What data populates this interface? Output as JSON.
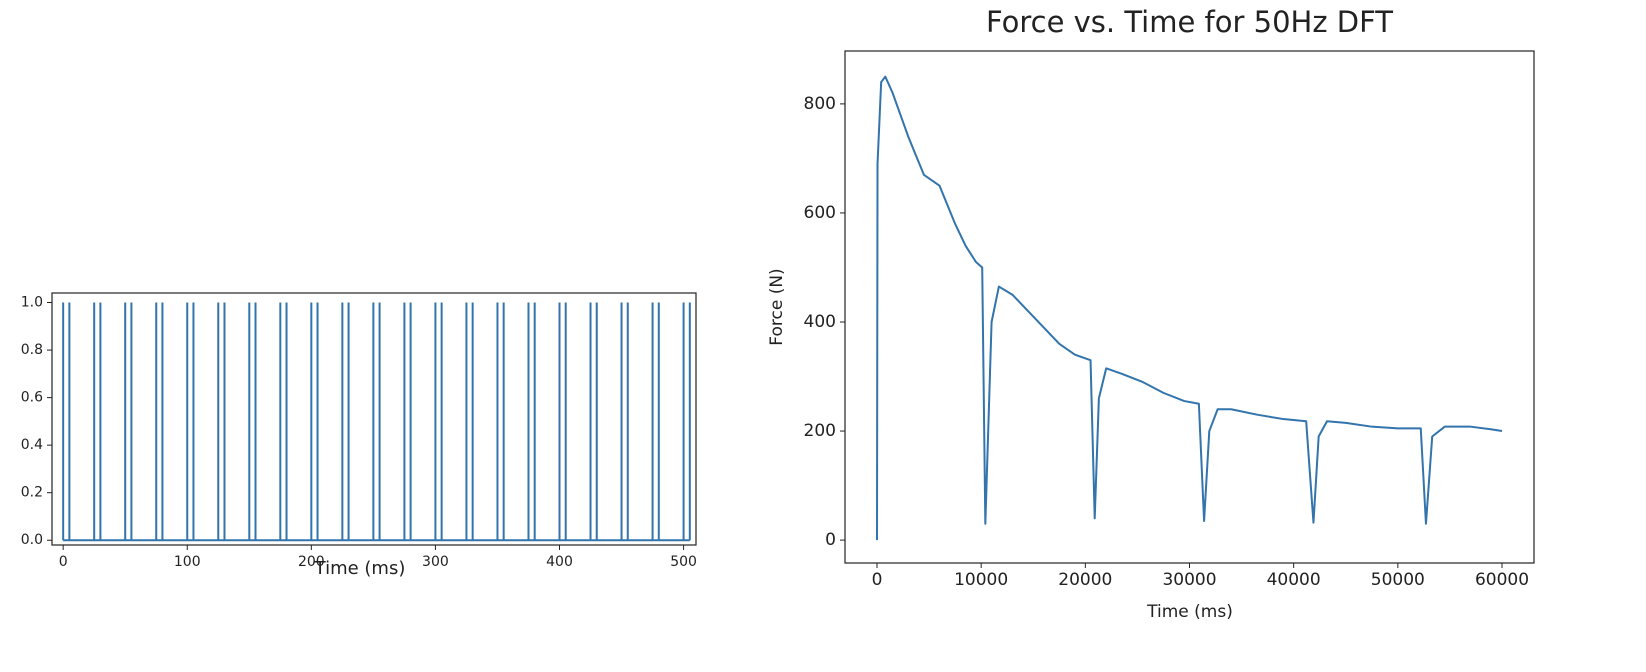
{
  "chart_data": [
    {
      "type": "stem",
      "xlabel": "Time (ms)",
      "x": [
        0,
        5,
        25,
        30,
        50,
        55,
        75,
        80,
        100,
        105,
        125,
        130,
        150,
        155,
        175,
        180,
        200,
        205,
        225,
        230,
        250,
        255,
        275,
        280,
        300,
        305,
        325,
        330,
        350,
        355,
        375,
        380,
        400,
        405,
        425,
        430,
        450,
        455,
        475,
        480,
        500,
        505
      ],
      "values": [
        1,
        1,
        1,
        1,
        1,
        1,
        1,
        1,
        1,
        1,
        1,
        1,
        1,
        1,
        1,
        1,
        1,
        1,
        1,
        1,
        1,
        1,
        1,
        1,
        1,
        1,
        1,
        1,
        1,
        1,
        1,
        1,
        1,
        1,
        1,
        1,
        1,
        1,
        1,
        1,
        1,
        1
      ],
      "color": "#3274ab",
      "xlim": [
        -9,
        510
      ],
      "ylim": [
        -0.02,
        1.04
      ],
      "xticks": [
        0,
        100,
        200,
        300,
        400,
        500
      ],
      "yticks": [
        {
          "value": 0,
          "label": "0.0"
        },
        0.2,
        0.4,
        0.6,
        0.8,
        {
          "value": 1,
          "label": "1.0"
        }
      ],
      "grid": false
    },
    {
      "type": "line",
      "title": "Force vs. Time for 50Hz DFT",
      "xlabel": "Time (ms)",
      "ylabel": "Force (N)",
      "x": [
        0,
        50,
        400,
        800,
        1500,
        3000,
        4500,
        6000,
        7500,
        8500,
        9500,
        10100,
        10400,
        11000,
        11700,
        13000,
        14500,
        16000,
        17500,
        19000,
        20500,
        20900,
        21300,
        22000,
        23500,
        25500,
        27500,
        29500,
        30900,
        31400,
        31900,
        32700,
        34000,
        36500,
        39000,
        41200,
        41900,
        42400,
        43200,
        45000,
        47500,
        50000,
        52200,
        52700,
        53300,
        54500,
        57000,
        59000,
        60000
      ],
      "values": [
        0,
        690,
        840,
        850,
        820,
        740,
        670,
        650,
        580,
        540,
        510,
        500,
        30,
        400,
        465,
        450,
        420,
        390,
        360,
        340,
        330,
        40,
        260,
        315,
        305,
        290,
        270,
        255,
        250,
        35,
        200,
        240,
        240,
        230,
        222,
        218,
        32,
        190,
        218,
        215,
        208,
        205,
        205,
        30,
        190,
        208,
        208,
        203,
        200
      ],
      "color": "#3274ab",
      "xlim": [
        -3072,
        63072
      ],
      "ylim": [
        -42,
        897
      ],
      "xticks": [
        0,
        10000,
        20000,
        30000,
        40000,
        50000,
        60000
      ],
      "yticks": [
        0,
        200,
        400,
        600,
        800
      ],
      "grid": false
    }
  ]
}
